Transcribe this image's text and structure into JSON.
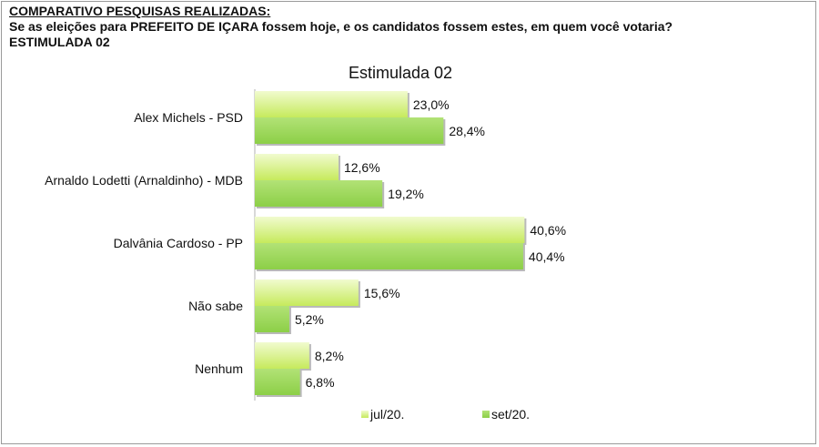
{
  "header": {
    "heading": "COMPARATIVO PESQUISAS REALIZADAS:",
    "question": "Se as eleições para PREFEITO DE IÇARA fossem hoje, e os candidatos fossem estes, em quem você votaria?",
    "survey_type": "ESTIMULADA 02"
  },
  "colors": {
    "jul": "#c6ea5c",
    "jul_light": "#f1fbcf",
    "set": "#8ccf47",
    "set_light": "#b2e276"
  },
  "chart_data": {
    "type": "bar",
    "orientation": "horizontal",
    "title": "Estimulada 02",
    "categories": [
      "Alex Michels - PSD",
      "Arnaldo Lodetti (Arnaldinho) - MDB",
      "Dalvânia Cardoso - PP",
      "Não sabe",
      "Nenhum"
    ],
    "series": [
      {
        "name": "jul/20.",
        "values": [
          23.0,
          12.6,
          40.6,
          15.6,
          8.2
        ],
        "labels": [
          "23,0%",
          "12,6%",
          "40,6%",
          "15,6%",
          "8,2%"
        ]
      },
      {
        "name": "set/20.",
        "values": [
          28.4,
          19.2,
          40.4,
          5.2,
          6.8
        ],
        "labels": [
          "28,4%",
          "19,2%",
          "40,4%",
          "5,2%",
          "6,8%"
        ]
      }
    ],
    "xlim": [
      0,
      45
    ],
    "grid": false,
    "legend": "bottom"
  }
}
